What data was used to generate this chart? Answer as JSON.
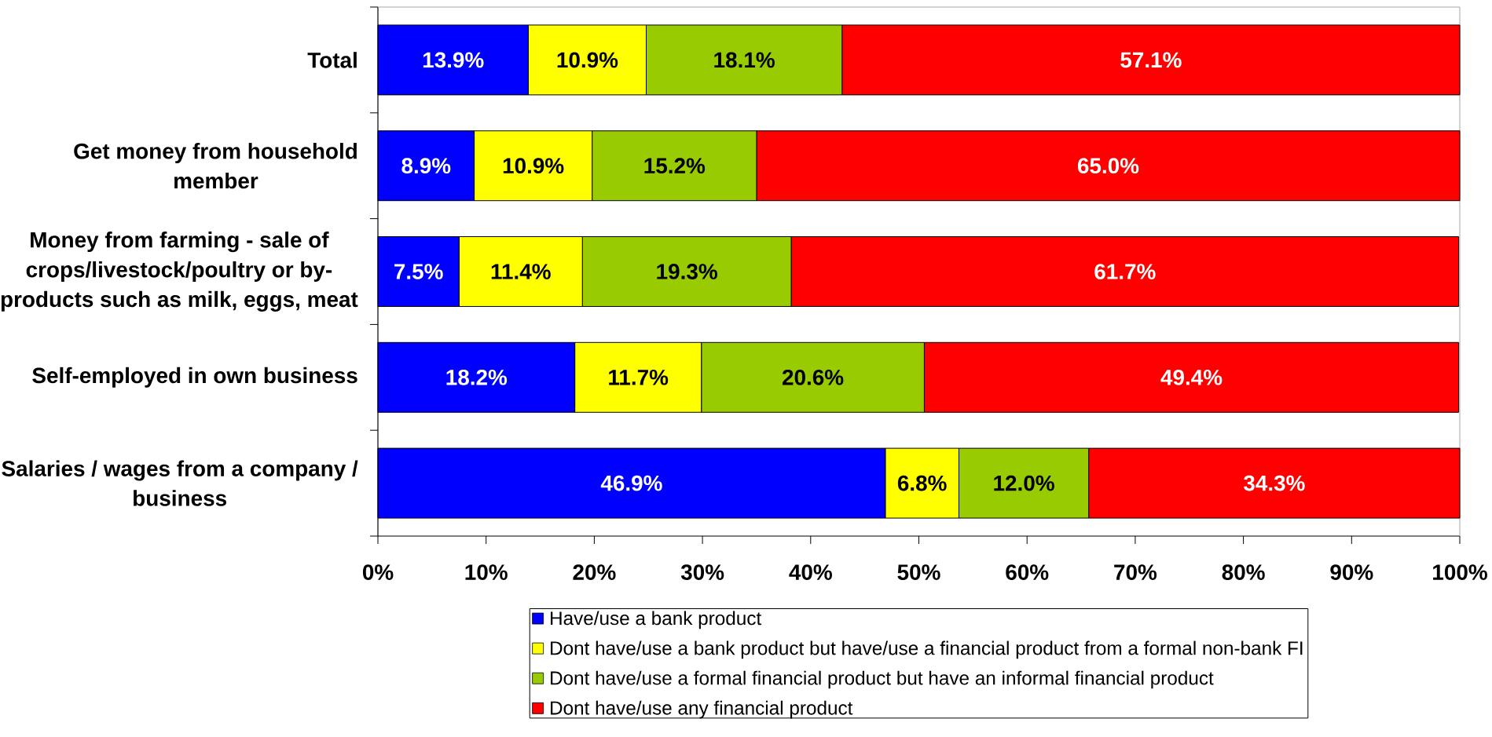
{
  "chart_data": {
    "type": "bar",
    "orientation": "horizontal",
    "stacked": true,
    "categories": [
      "Total",
      "Get money from household member",
      "Money from farming - sale of crops/livestock/poultry or by-products such as milk, eggs, meat",
      "Self-employed in own business",
      "Salaries / wages from a company / business"
    ],
    "series": [
      {
        "name": "Have/use a bank product",
        "color": "#0000ff",
        "values": [
          13.9,
          8.9,
          7.5,
          18.2,
          46.9
        ],
        "value_labels": [
          "13.9%",
          "8.9%",
          "7.5%",
          "18.2%",
          "46.9%"
        ]
      },
      {
        "name": "Dont have/use a bank product but have/use a financial product from a formal non-bank FI",
        "color": "#ffff00",
        "values": [
          10.9,
          10.9,
          11.4,
          11.7,
          6.8
        ],
        "value_labels": [
          "10.9%",
          "10.9%",
          "11.4%",
          "11.7%",
          "6.8%"
        ]
      },
      {
        "name": "Dont have/use a formal financial product but have an informal financial product",
        "color": "#99cc00",
        "values": [
          18.1,
          15.2,
          19.3,
          20.6,
          12.0
        ],
        "value_labels": [
          "18.1%",
          "15.2%",
          "19.3%",
          "20.6%",
          "12.0%"
        ]
      },
      {
        "name": "Dont have/use any financial product",
        "color": "#ff0000",
        "values": [
          57.1,
          65.0,
          61.7,
          49.4,
          34.3
        ],
        "value_labels": [
          "57.1%",
          "65.0%",
          "61.7%",
          "49.4%",
          "34.3%"
        ]
      }
    ],
    "xlim": [
      0,
      100
    ],
    "xticks": [
      {
        "value": 0,
        "label": "0%"
      },
      {
        "value": 10,
        "label": "10%"
      },
      {
        "value": 20,
        "label": "20%"
      },
      {
        "value": 30,
        "label": "30%"
      },
      {
        "value": 40,
        "label": "40%"
      },
      {
        "value": 50,
        "label": "50%"
      },
      {
        "value": 60,
        "label": "60%"
      },
      {
        "value": 70,
        "label": "70%"
      },
      {
        "value": 80,
        "label": "80%"
      },
      {
        "value": 90,
        "label": "90%"
      },
      {
        "value": 100,
        "label": "100%"
      }
    ],
    "legend": "bottom"
  }
}
